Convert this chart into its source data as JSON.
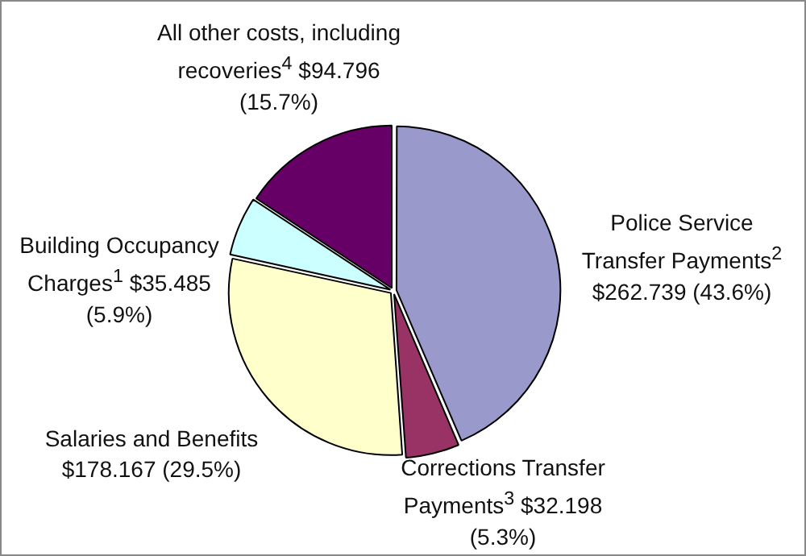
{
  "chart_data": {
    "type": "pie",
    "categories": [
      "Police Service Transfer Payments$^{2}$",
      "Corrections Transfer Payments$^{3}$",
      "Salaries and Benefits",
      "Building Occupancy Charges$^{1}$",
      "All other costs, including recoveries$^{4}$"
    ],
    "values": [
      262.739,
      32.198,
      178.167,
      35.485,
      94.796
    ],
    "value_labels": [
      "$262.739  (43.6%)",
      "$32.198  (5.3%)",
      "$178.167  (29.5%)",
      "$35.485  (5.9%)",
      "$94.796  (15.7%)"
    ],
    "colors": [
      "#9999cc",
      "#993366",
      "#ffffcc",
      "#ccffff",
      "#660066"
    ],
    "legend": false
  }
}
